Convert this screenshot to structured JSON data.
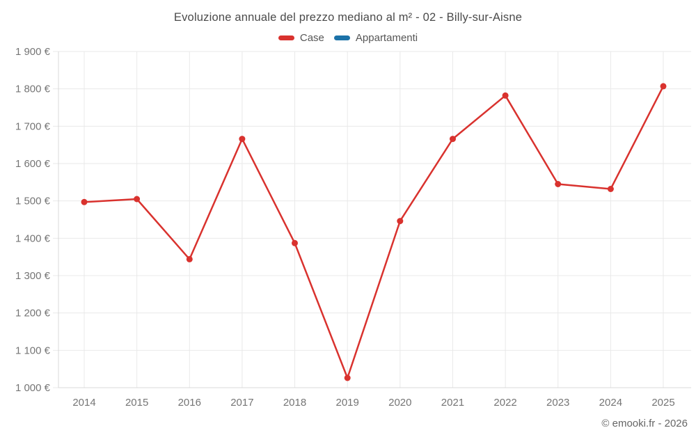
{
  "chart_data": {
    "type": "line",
    "title": "Evoluzione annuale del prezzo mediano al m² - 02 - Billy-sur-Aisne",
    "categories": [
      "2014",
      "2015",
      "2016",
      "2017",
      "2018",
      "2019",
      "2020",
      "2021",
      "2022",
      "2023",
      "2024",
      "2025"
    ],
    "series": [
      {
        "name": "Case",
        "color": "#d9322e",
        "values": [
          1497,
          1505,
          1344,
          1666,
          1387,
          1026,
          1446,
          1666,
          1782,
          1545,
          1532,
          1807
        ]
      },
      {
        "name": "Appartamenti",
        "color": "#1c72a8",
        "values": []
      }
    ],
    "ylim": [
      1000,
      1900
    ],
    "ytick_step": 100,
    "ytick_labels": [
      "1 000 €",
      "1 100 €",
      "1 200 €",
      "1 300 €",
      "1 400 €",
      "1 500 €",
      "1 600 €",
      "1 700 €",
      "1 800 €",
      "1 900 €"
    ],
    "grid": true,
    "legend_position": "top",
    "marker": "circle"
  },
  "colors": {
    "grid": "#e9e9e9",
    "axis": "#d8d8d8",
    "tick_text": "#757575",
    "title_text": "#4a4a4a"
  },
  "footer": {
    "text": "© emooki.fr - 2026"
  }
}
